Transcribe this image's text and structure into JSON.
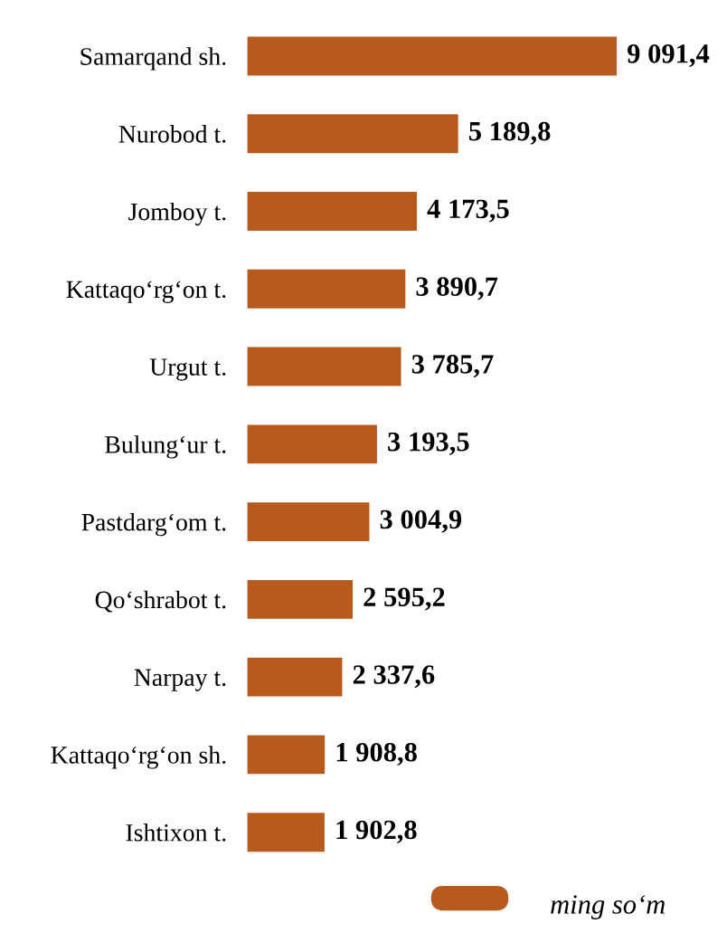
{
  "chart_data": {
    "type": "bar",
    "orientation": "horizontal",
    "categories": [
      "Samarqand sh.",
      "Nurobod t.",
      "Jomboy t.",
      "Kattaqo‘rg‘on t.",
      "Urgut t.",
      "Bulung‘ur t.",
      "Pastdarg‘om t.",
      "Qo‘shrabot t.",
      "Narpay t.",
      "Kattaqo‘rg‘on sh.",
      "Ishtixon t."
    ],
    "series": [
      {
        "name": "ming so‘m",
        "color": "#b85a1e",
        "values": [
          9091.4,
          5189.8,
          4173.5,
          3890.7,
          3785.7,
          3193.5,
          3004.9,
          2595.2,
          2337.6,
          1908.8,
          1902.8
        ],
        "value_labels": [
          "9 091,4",
          "5 189,8",
          "4 173,5",
          "3 890,7",
          "3 785,7",
          "3 193,5",
          "3 004,9",
          "2 595,2",
          "2 337,6",
          "1 908,8",
          "1 902,8"
        ]
      }
    ],
    "legend": "bottom",
    "grid": false
  }
}
